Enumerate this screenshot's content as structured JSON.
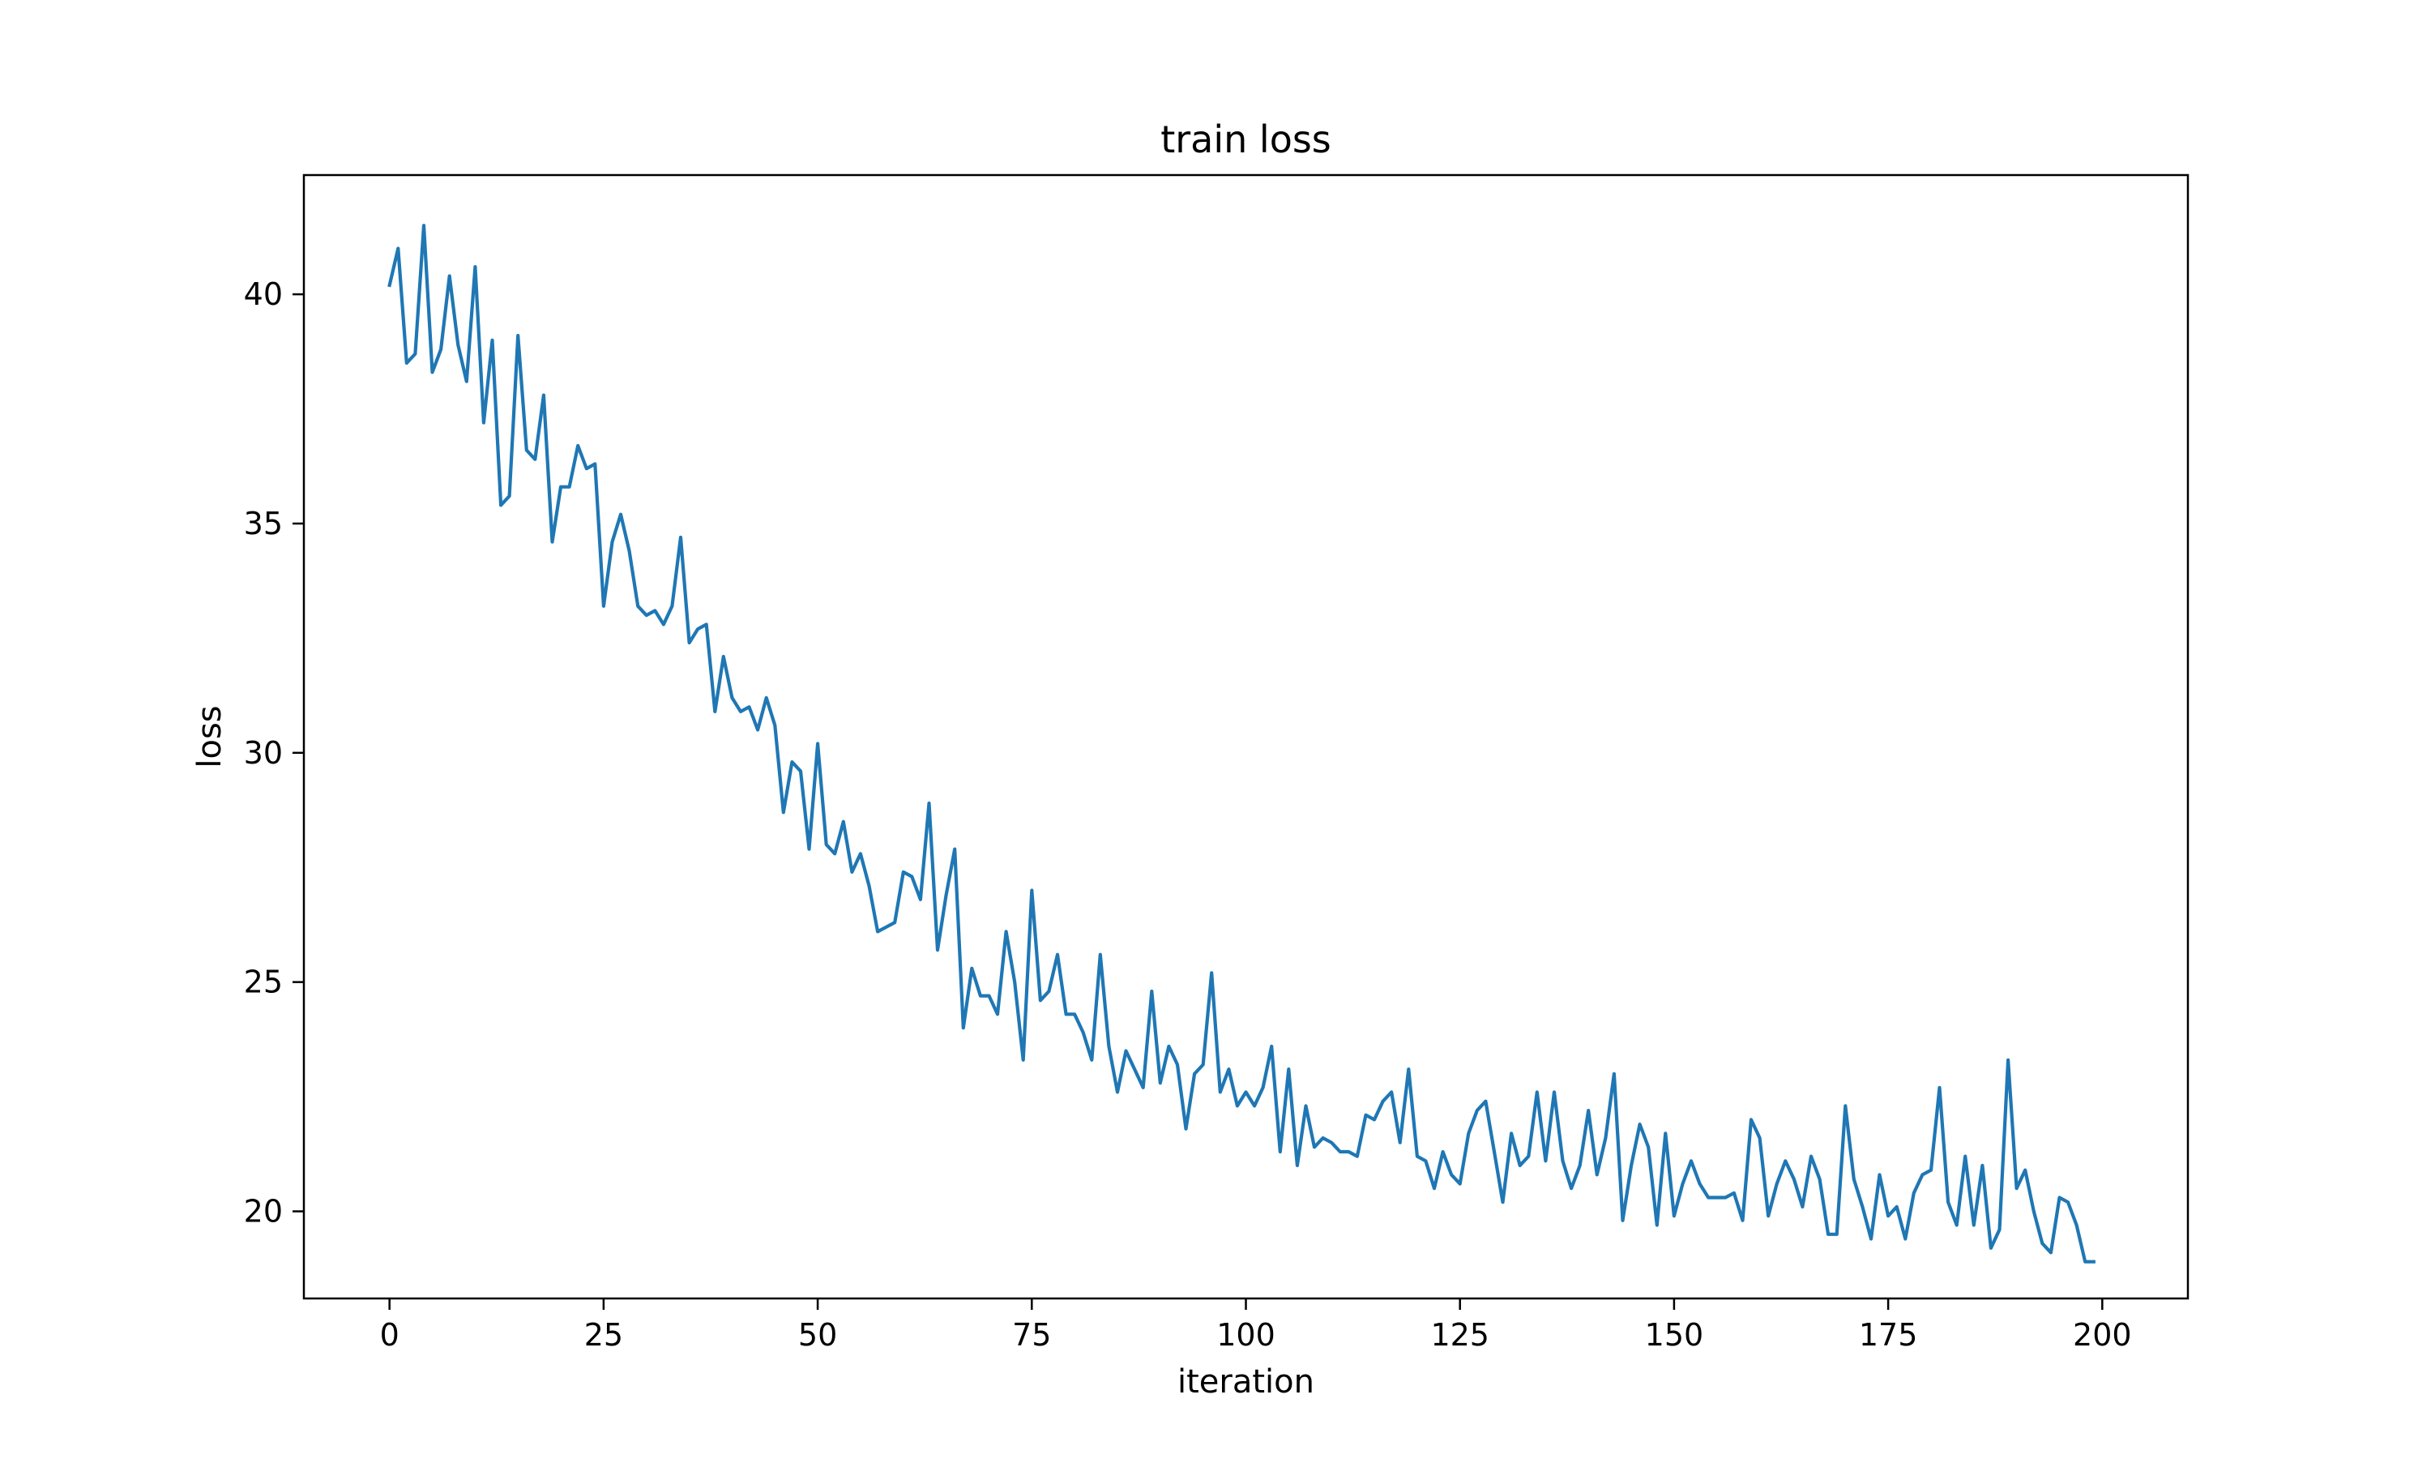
{
  "chart_data": {
    "type": "line",
    "title": "train loss",
    "xlabel": "iteration",
    "ylabel": "loss",
    "xlim": [
      -10,
      210
    ],
    "ylim": [
      18.1,
      42.6
    ],
    "xticks": [
      0,
      25,
      50,
      75,
      100,
      125,
      150,
      175,
      200
    ],
    "yticks": [
      20,
      25,
      30,
      35,
      40
    ],
    "xtick_labels": [
      "0",
      "25",
      "50",
      "75",
      "100",
      "125",
      "150",
      "175",
      "200"
    ],
    "ytick_labels": [
      "20",
      "25",
      "30",
      "35",
      "40"
    ],
    "grid": false,
    "series": [
      {
        "color": "#1f77b4",
        "x": [
          0,
          1,
          2,
          3,
          4,
          5,
          6,
          7,
          8,
          9,
          10,
          11,
          12,
          13,
          14,
          15,
          16,
          17,
          18,
          19,
          20,
          21,
          22,
          23,
          24,
          25,
          26,
          27,
          28,
          29,
          30,
          31,
          32,
          33,
          34,
          35,
          36,
          37,
          38,
          39,
          40,
          41,
          42,
          43,
          44,
          45,
          46,
          47,
          48,
          49,
          50,
          51,
          52,
          53,
          54,
          55,
          56,
          57,
          58,
          59,
          60,
          61,
          62,
          63,
          64,
          65,
          66,
          67,
          68,
          69,
          70,
          71,
          72,
          73,
          74,
          75,
          76,
          77,
          78,
          79,
          80,
          81,
          82,
          83,
          84,
          85,
          86,
          87,
          88,
          89,
          90,
          91,
          92,
          93,
          94,
          95,
          96,
          97,
          98,
          99,
          100,
          101,
          102,
          103,
          104,
          105,
          106,
          107,
          108,
          109,
          110,
          111,
          112,
          113,
          114,
          115,
          116,
          117,
          118,
          119,
          120,
          121,
          122,
          123,
          124,
          125,
          126,
          127,
          128,
          129,
          130,
          131,
          132,
          133,
          134,
          135,
          136,
          137,
          138,
          139,
          140,
          141,
          142,
          143,
          144,
          145,
          146,
          147,
          148,
          149,
          150,
          151,
          152,
          153,
          154,
          155,
          156,
          157,
          158,
          159,
          160,
          161,
          162,
          163,
          164,
          165,
          166,
          167,
          168,
          169,
          170,
          171,
          172,
          173,
          174,
          175,
          176,
          177,
          178,
          179,
          180,
          181,
          182,
          183,
          184,
          185,
          186,
          187,
          188,
          189,
          190,
          191,
          192,
          193,
          194,
          195,
          196,
          197,
          198,
          199
        ],
        "y": [
          40.2,
          41.0,
          38.5,
          38.7,
          41.5,
          38.3,
          38.8,
          40.4,
          38.9,
          38.1,
          40.6,
          37.2,
          39.0,
          35.4,
          35.6,
          39.1,
          36.6,
          36.4,
          37.8,
          34.6,
          35.8,
          35.8,
          36.7,
          36.2,
          36.3,
          33.2,
          34.6,
          35.2,
          34.4,
          33.2,
          33.0,
          33.1,
          32.8,
          33.2,
          34.7,
          32.4,
          32.7,
          32.8,
          30.9,
          32.1,
          31.2,
          30.9,
          31.0,
          30.5,
          31.2,
          30.6,
          28.7,
          29.8,
          29.6,
          27.9,
          30.2,
          28.0,
          27.8,
          28.5,
          27.4,
          27.8,
          27.1,
          26.1,
          26.2,
          26.3,
          27.4,
          27.3,
          26.8,
          28.9,
          25.7,
          26.9,
          27.9,
          24.0,
          25.3,
          24.7,
          24.7,
          24.3,
          26.1,
          25.0,
          23.3,
          27.0,
          24.6,
          24.8,
          25.6,
          24.3,
          24.3,
          23.9,
          23.3,
          25.6,
          23.6,
          22.6,
          23.5,
          23.1,
          22.7,
          24.8,
          22.8,
          23.6,
          23.2,
          21.8,
          23.0,
          23.2,
          25.2,
          22.6,
          23.1,
          22.3,
          22.6,
          22.3,
          22.7,
          23.6,
          21.3,
          23.1,
          21.0,
          22.3,
          21.4,
          21.6,
          21.5,
          21.3,
          21.3,
          21.2,
          22.1,
          22.0,
          22.4,
          22.6,
          21.5,
          23.1,
          21.2,
          21.1,
          20.5,
          21.3,
          20.8,
          20.6,
          21.7,
          22.2,
          22.4,
          21.3,
          20.2,
          21.7,
          21.0,
          21.2,
          22.6,
          21.1,
          22.6,
          21.1,
          20.5,
          21.0,
          22.2,
          20.8,
          21.6,
          23.0,
          19.8,
          21.0,
          21.9,
          21.4,
          19.7,
          21.7,
          19.9,
          20.6,
          21.1,
          20.6,
          20.3,
          20.3,
          20.3,
          20.4,
          19.8,
          22.0,
          21.6,
          19.9,
          20.6,
          21.1,
          20.7,
          20.1,
          21.2,
          20.7,
          19.5,
          19.5,
          22.3,
          20.7,
          20.1,
          19.4,
          20.8,
          19.9,
          20.1,
          19.4,
          20.4,
          20.8,
          20.9,
          22.7,
          20.2,
          19.7,
          21.2,
          19.7,
          21.0,
          19.2,
          19.6,
          23.3,
          20.5,
          20.9,
          20.0,
          19.3,
          19.1,
          20.3,
          20.2,
          19.7,
          18.9,
          18.9
        ]
      }
    ]
  }
}
